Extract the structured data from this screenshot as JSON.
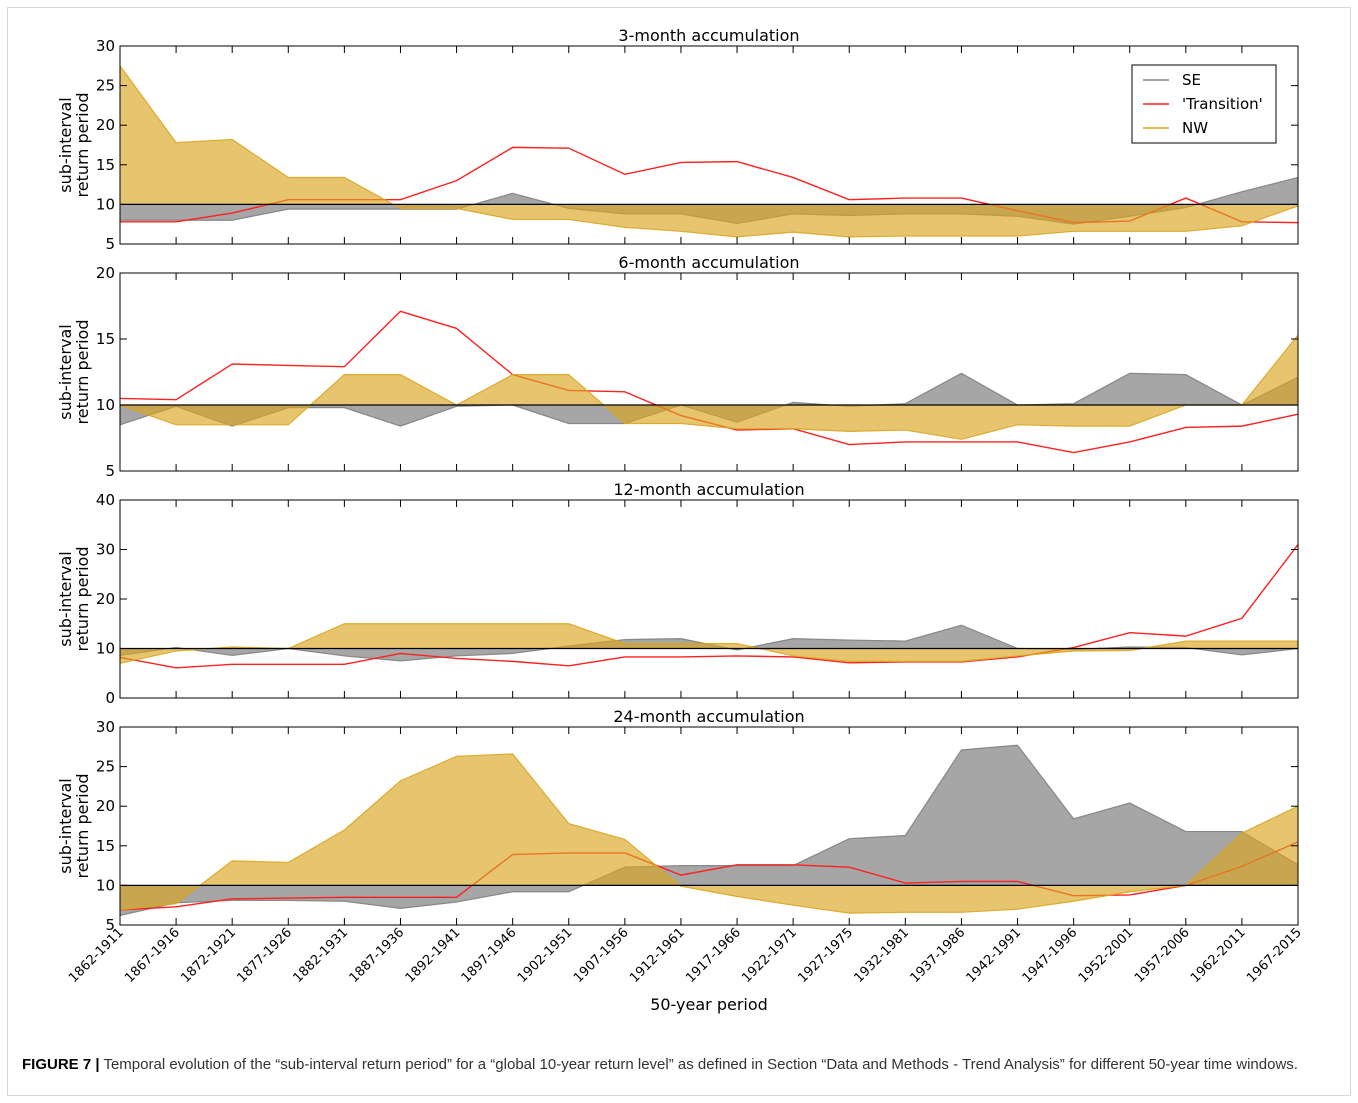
{
  "chart_data": [
    {
      "type": "area-line",
      "title": "3-month accumulation",
      "ylabel": [
        "sub-interval",
        "return period"
      ],
      "ylim": [
        5,
        30
      ],
      "yticks": [
        5,
        10,
        15,
        20,
        25,
        30
      ],
      "reference_line": 10,
      "legend": "upper right",
      "series": [
        {
          "name": "SE",
          "color": "#808080",
          "values": [
            8.0,
            8.0,
            8.0,
            9.4,
            9.4,
            9.4,
            9.4,
            11.4,
            9.5,
            8.8,
            8.8,
            7.6,
            8.8,
            8.6,
            8.8,
            8.8,
            8.5,
            7.5,
            8.5,
            9.6,
            11.6,
            13.4
          ]
        },
        {
          "name": "'Transition'",
          "color": "#ff2020",
          "values": [
            7.8,
            7.8,
            8.9,
            10.6,
            10.6,
            10.6,
            13.0,
            17.2,
            17.1,
            13.8,
            15.3,
            15.4,
            13.4,
            10.6,
            10.8,
            10.8,
            9.2,
            7.7,
            7.9,
            10.8,
            7.8,
            7.7
          ]
        },
        {
          "name": "NW",
          "color": "#daa520",
          "values": [
            27.5,
            17.8,
            18.2,
            13.4,
            13.4,
            9.5,
            9.5,
            8.1,
            8.1,
            7.1,
            6.6,
            5.9,
            6.5,
            5.9,
            6.0,
            6.0,
            6.0,
            6.6,
            6.6,
            6.6,
            7.3,
            9.8
          ]
        }
      ]
    },
    {
      "type": "area-line",
      "title": "6-month accumulation",
      "ylabel": [
        "sub-interval",
        "return period"
      ],
      "ylim": [
        5,
        20
      ],
      "yticks": [
        5,
        10,
        15,
        20
      ],
      "reference_line": 10,
      "series": [
        {
          "color": "#808080",
          "values": [
            8.5,
            9.9,
            8.4,
            9.8,
            9.8,
            8.4,
            9.9,
            10.0,
            8.6,
            8.6,
            10.0,
            8.7,
            10.2,
            9.9,
            10.1,
            12.4,
            10.0,
            10.1,
            12.4,
            12.3,
            10.0,
            12.1
          ]
        },
        {
          "color": "#ff2020",
          "values": [
            10.5,
            10.4,
            13.1,
            13.0,
            12.9,
            17.1,
            15.8,
            12.3,
            11.1,
            11.0,
            9.2,
            8.1,
            8.2,
            7.0,
            7.2,
            7.2,
            7.2,
            6.4,
            7.2,
            8.3,
            8.4,
            9.3
          ]
        },
        {
          "color": "#daa520",
          "values": [
            10.0,
            8.5,
            8.5,
            8.5,
            12.3,
            12.3,
            10.0,
            12.3,
            12.3,
            8.6,
            8.6,
            8.2,
            8.2,
            8.0,
            8.1,
            7.4,
            8.5,
            8.4,
            8.4,
            10.0,
            10.0,
            15.3
          ]
        }
      ]
    },
    {
      "type": "area-line",
      "title": "12-month accumulation",
      "ylabel": [
        "sub-interval",
        "return period"
      ],
      "ylim": [
        0,
        40
      ],
      "yticks": [
        0,
        10,
        20,
        30,
        40
      ],
      "reference_line": 10,
      "series": [
        {
          "color": "#808080",
          "values": [
            8.6,
            10.2,
            8.6,
            10.0,
            8.5,
            7.5,
            8.5,
            9.0,
            10.5,
            11.8,
            12.0,
            9.7,
            12.0,
            11.7,
            11.5,
            14.7,
            10.0,
            9.8,
            10.3,
            10.2,
            8.7,
            10.0
          ]
        },
        {
          "color": "#ff2020",
          "values": [
            8.2,
            6.1,
            6.8,
            6.8,
            6.8,
            9.0,
            8.0,
            7.4,
            6.5,
            8.3,
            8.3,
            8.5,
            8.3,
            7.1,
            7.3,
            7.3,
            8.3,
            10.2,
            13.2,
            12.5,
            16.1,
            31.0
          ]
        },
        {
          "color": "#daa520",
          "values": [
            7.0,
            9.5,
            10.3,
            10.0,
            15.0,
            15.0,
            15.0,
            15.0,
            15.0,
            11.0,
            11.0,
            11.0,
            8.5,
            7.4,
            7.4,
            7.4,
            8.5,
            9.5,
            9.6,
            11.5,
            11.5,
            11.5
          ]
        }
      ]
    },
    {
      "type": "area-line",
      "title": "24-month accumulation",
      "ylabel": [
        "sub-interval",
        "return period"
      ],
      "xlabel": "50-year period",
      "categories": [
        "1862-1911",
        "1867-1916",
        "1872-1921",
        "1877-1926",
        "1882-1931",
        "1887-1936",
        "1892-1941",
        "1897-1946",
        "1902-1951",
        "1907-1956",
        "1912-1961",
        "1917-1966",
        "1922-1971",
        "1927-1975",
        "1932-1981",
        "1937-1986",
        "1942-1991",
        "1947-1996",
        "1952-2001",
        "1957-2006",
        "1962-2011",
        "1967-2015"
      ],
      "ylim": [
        5,
        30
      ],
      "yticks": [
        5,
        10,
        15,
        20,
        25,
        30
      ],
      "reference_line": 10,
      "series": [
        {
          "color": "#808080",
          "values": [
            6.2,
            7.8,
            8.1,
            8.1,
            8.0,
            7.1,
            7.9,
            9.2,
            9.2,
            12.3,
            12.5,
            12.5,
            12.5,
            15.9,
            16.3,
            27.1,
            27.7,
            18.4,
            20.4,
            16.8,
            16.8,
            12.6
          ]
        },
        {
          "color": "#ff2020",
          "values": [
            6.9,
            7.3,
            8.3,
            8.4,
            8.5,
            8.5,
            8.5,
            13.9,
            14.1,
            14.1,
            11.3,
            12.6,
            12.6,
            12.3,
            10.3,
            10.5,
            10.5,
            8.7,
            8.8,
            10.0,
            12.4,
            15.5
          ]
        },
        {
          "color": "#daa520",
          "values": [
            6.9,
            7.7,
            13.1,
            12.9,
            17.0,
            23.2,
            26.3,
            26.6,
            17.8,
            15.8,
            9.9,
            8.6,
            7.5,
            6.5,
            6.6,
            6.6,
            7.0,
            8.0,
            9.2,
            10.0,
            16.6,
            20.0
          ]
        }
      ]
    }
  ],
  "caption": {
    "label": "FIGURE 7 |",
    "text": "Temporal evolution of the “sub-interval return period” for a “global 10-year return level” as defined in Section “Data and Methods - Trend Analysis” for different 50-year time windows."
  }
}
